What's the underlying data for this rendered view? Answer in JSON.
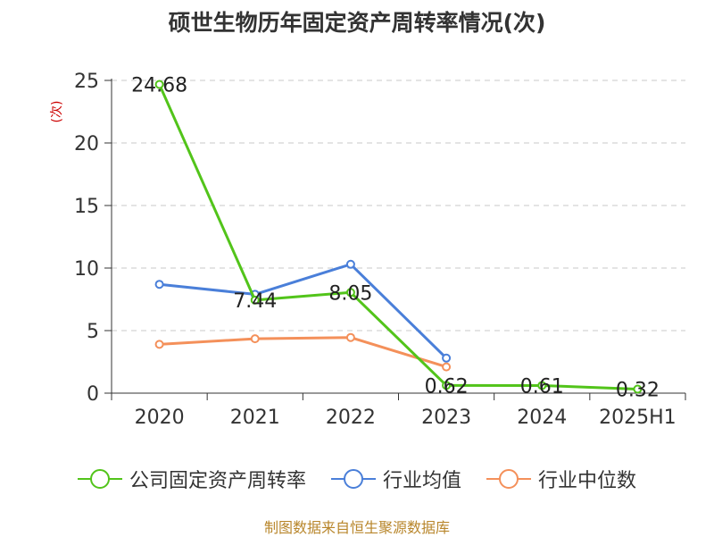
{
  "chart_data": {
    "type": "line",
    "title": "硕世生物历年固定资产周转率情况(次)",
    "ylabel": "(次)",
    "xlabel": "",
    "ylim": [
      0,
      25
    ],
    "yticks": [
      0,
      5,
      10,
      15,
      20,
      25
    ],
    "grid": true,
    "legend_position": "bottom",
    "categories": [
      "2020",
      "2021",
      "2022",
      "2023",
      "2024",
      "2025H1"
    ],
    "series": [
      {
        "name": "公司固定资产周转率",
        "color": "#52c41a",
        "values": [
          24.68,
          7.44,
          8.05,
          0.62,
          0.61,
          0.32
        ],
        "labels": [
          "24.68",
          "7.44",
          "8.05",
          "0.62",
          "0.61",
          "0.32"
        ]
      },
      {
        "name": "行业均值",
        "color": "#4a7fd9",
        "values": [
          8.7,
          7.9,
          10.3,
          2.8,
          null,
          null
        ]
      },
      {
        "name": "行业中位数",
        "color": "#f4905a",
        "values": [
          3.9,
          4.35,
          4.45,
          2.1,
          null,
          null
        ]
      }
    ]
  },
  "source": "制图数据来自恒生聚源数据库"
}
